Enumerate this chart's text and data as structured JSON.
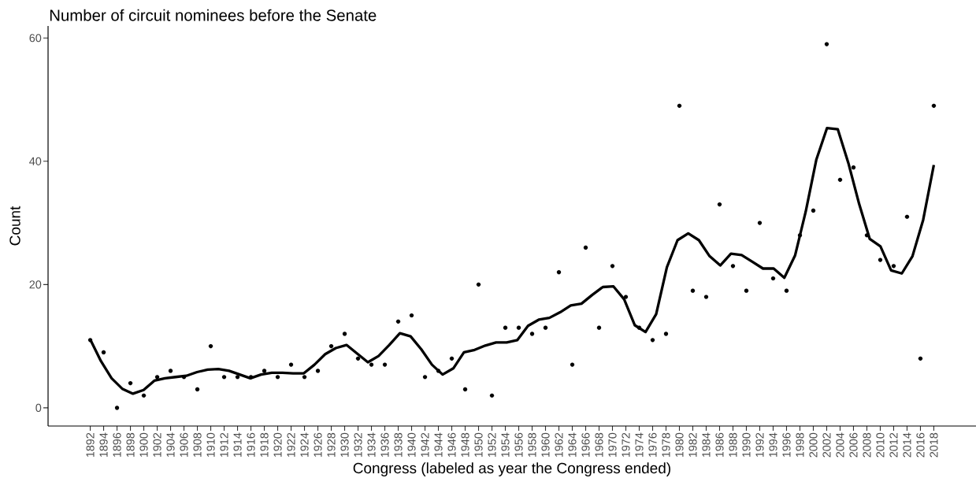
{
  "chart_data": {
    "type": "scatter",
    "title": "Number of circuit nominees before the Senate",
    "xlabel": "Congress (labeled as year the Congress ended)",
    "ylabel": "Count",
    "x": [
      1892,
      1894,
      1896,
      1898,
      1900,
      1902,
      1904,
      1906,
      1908,
      1910,
      1912,
      1914,
      1916,
      1918,
      1920,
      1922,
      1924,
      1926,
      1928,
      1930,
      1932,
      1934,
      1936,
      1938,
      1940,
      1942,
      1944,
      1946,
      1948,
      1950,
      1952,
      1954,
      1956,
      1958,
      1960,
      1962,
      1964,
      1966,
      1968,
      1970,
      1972,
      1974,
      1976,
      1978,
      1980,
      1982,
      1984,
      1986,
      1988,
      1990,
      1992,
      1994,
      1996,
      1998,
      2000,
      2002,
      2004,
      2006,
      2008,
      2010,
      2012,
      2014,
      2016,
      2018
    ],
    "xlim": [
      1885.7,
      2024.3
    ],
    "xticks": [
      1892,
      1894,
      1896,
      1898,
      1900,
      1902,
      1904,
      1906,
      1908,
      1910,
      1912,
      1914,
      1916,
      1918,
      1920,
      1922,
      1924,
      1926,
      1928,
      1930,
      1932,
      1934,
      1936,
      1938,
      1940,
      1942,
      1944,
      1946,
      1948,
      1950,
      1952,
      1954,
      1956,
      1958,
      1960,
      1962,
      1964,
      1966,
      1968,
      1970,
      1972,
      1974,
      1976,
      1978,
      1980,
      1982,
      1984,
      1986,
      1988,
      1990,
      1992,
      1994,
      1996,
      1998,
      2000,
      2002,
      2004,
      2006,
      2008,
      2010,
      2012,
      2014,
      2016,
      2018
    ],
    "ylim": [
      -2.95,
      61.95
    ],
    "yticks": [
      0,
      20,
      40,
      60
    ],
    "series": [
      {
        "color": "#000000",
        "marker": "circle",
        "values": [
          11,
          9,
          0,
          4,
          2,
          5,
          6,
          5,
          3,
          10,
          5,
          5,
          5,
          6,
          5,
          7,
          5,
          6,
          10,
          12,
          8,
          7,
          7,
          14,
          15,
          5,
          6,
          8,
          3,
          20,
          2,
          13,
          13,
          12,
          13,
          22,
          7,
          26,
          13,
          23,
          18,
          13,
          11,
          12,
          49,
          19,
          18,
          33,
          23,
          19,
          30,
          21,
          19,
          28,
          32,
          59,
          37,
          39,
          28,
          24,
          23,
          31,
          8,
          49
        ]
      },
      {
        "type": "line",
        "color": "#000000",
        "line_style": "solid",
        "x": [
          1892,
          1893.59,
          1895.19,
          1896.78,
          1898.38,
          1899.97,
          1901.57,
          1903.16,
          1904.76,
          1906.35,
          1907.95,
          1909.54,
          1911.14,
          1912.73,
          1914.33,
          1915.92,
          1917.52,
          1919.11,
          1920.71,
          1922.3,
          1923.9,
          1925.49,
          1927.09,
          1928.68,
          1930.28,
          1931.87,
          1933.47,
          1935.06,
          1936.66,
          1938.25,
          1939.85,
          1941.44,
          1943.04,
          1944.63,
          1946.23,
          1947.82,
          1949.42,
          1951.01,
          1952.61,
          1954.2,
          1955.8,
          1957.39,
          1958.99,
          1960.58,
          1962.18,
          1963.77,
          1965.37,
          1966.96,
          1968.56,
          1970.15,
          1971.75,
          1973.34,
          1974.94,
          1976.53,
          1978.13,
          1979.72,
          1981.32,
          1982.91,
          1984.51,
          1986.1,
          1987.7,
          1989.29,
          1990.89,
          1992.48,
          1994.08,
          1995.67,
          1997.27,
          1998.86,
          2000.46,
          2002.05,
          2003.65,
          2005.24,
          2006.84,
          2008.43,
          2010.03,
          2011.62,
          2013.22,
          2014.81,
          2016.41,
          2018
        ],
        "values": [
          11.1,
          7.6,
          4.8,
          3.1,
          2.3,
          2.9,
          4.4,
          4.8,
          5.0,
          5.2,
          5.8,
          6.2,
          6.3,
          6.0,
          5.4,
          4.8,
          5.4,
          5.7,
          5.7,
          5.6,
          5.6,
          7.0,
          8.7,
          9.7,
          10.2,
          8.8,
          7.4,
          8.4,
          10.2,
          12.1,
          11.6,
          9.5,
          7.0,
          5.4,
          6.4,
          9.0,
          9.4,
          10.1,
          10.6,
          10.6,
          11.0,
          13.3,
          14.3,
          14.6,
          15.5,
          16.6,
          16.9,
          18.3,
          19.6,
          19.7,
          17.6,
          13.4,
          12.3,
          15.2,
          22.8,
          27.2,
          28.3,
          27.2,
          24.6,
          23.1,
          25.0,
          24.8,
          23.7,
          22.6,
          22.6,
          21.1,
          24.7,
          31.8,
          40.3,
          45.4,
          45.2,
          39.7,
          33.1,
          27.4,
          26.2,
          22.3,
          21.8,
          24.6,
          30.5,
          39.4
        ]
      }
    ]
  }
}
